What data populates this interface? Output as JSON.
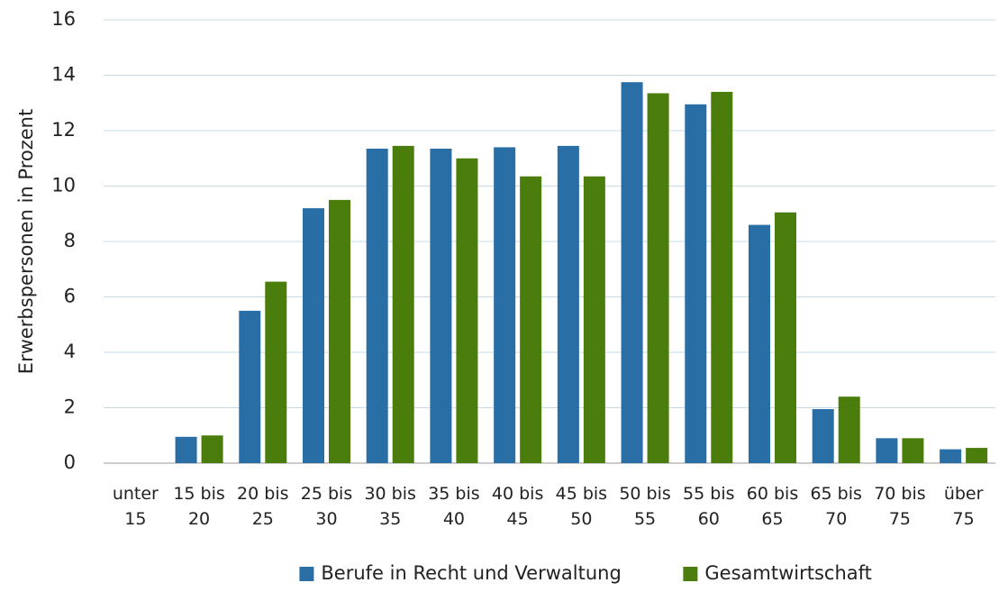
{
  "chart_data": {
    "type": "bar",
    "y_label": "Erwerbspersonen in Prozent",
    "categories": [
      "unter 15",
      "15 bis 20",
      "20 bis 25",
      "25 bis 30",
      "30 bis 35",
      "35 bis 40",
      "40 bis 45",
      "45 bis 50",
      "50 bis 55",
      "55 bis 60",
      "60 bis 65",
      "65 bis 70",
      "70 bis 75",
      "über 75"
    ],
    "series": [
      {
        "name": "Berufe in Recht und Verwaltung",
        "color": "#2a6ea6",
        "values": [
          0,
          0.95,
          5.5,
          9.2,
          11.35,
          11.35,
          11.4,
          11.45,
          13.75,
          12.95,
          8.6,
          1.95,
          0.9,
          0.5
        ]
      },
      {
        "name": "Gesamtwirtschaft",
        "color": "#4a7d0c",
        "values": [
          0,
          1.0,
          6.55,
          9.5,
          11.45,
          11.0,
          10.35,
          10.35,
          13.35,
          13.4,
          9.05,
          2.4,
          0.9,
          0.55
        ]
      }
    ],
    "ylim": [
      0,
      16
    ],
    "yticks": [
      0,
      2,
      4,
      6,
      8,
      10,
      12,
      14,
      16
    ],
    "grid": true,
    "legend": "bottom"
  }
}
